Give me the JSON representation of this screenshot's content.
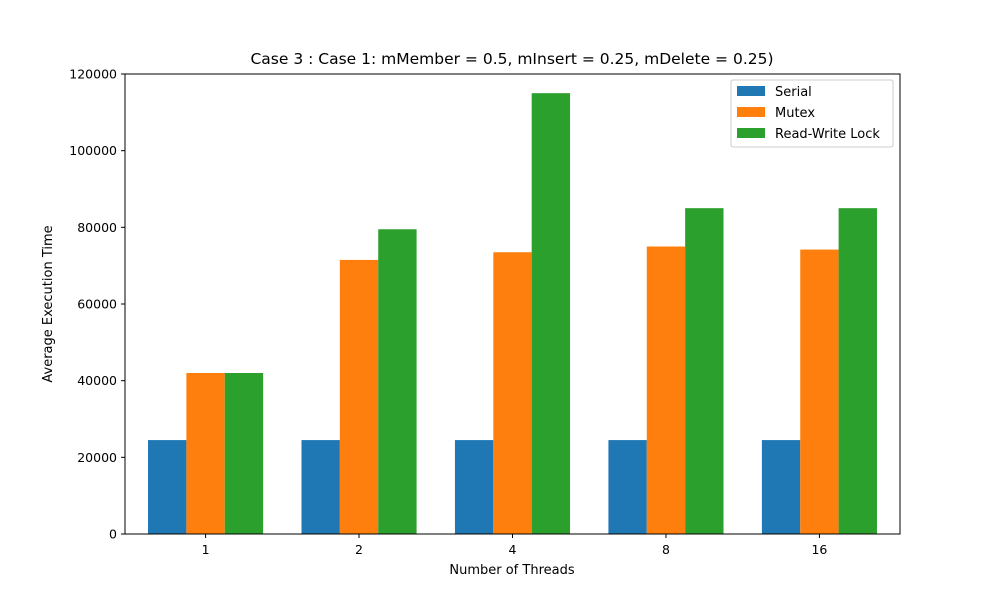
{
  "chart_data": {
    "type": "bar",
    "title": "Case 3 : Case 1: mMember = 0.5, mInsert = 0.25, mDelete = 0.25)",
    "xlabel": "Number of Threads",
    "ylabel": "Average Execution Time",
    "categories": [
      "1",
      "2",
      "4",
      "8",
      "16"
    ],
    "ylim": [
      0,
      120000
    ],
    "yticks": [
      0,
      20000,
      40000,
      60000,
      80000,
      100000,
      120000
    ],
    "ytick_labels": [
      "0",
      "20000",
      "40000",
      "60000",
      "80000",
      "100000",
      "120000"
    ],
    "grid": false,
    "legend_position": "top-right",
    "series": [
      {
        "name": "Serial",
        "color": "#1f77b4",
        "values": [
          24500,
          24500,
          24500,
          24500,
          24500
        ]
      },
      {
        "name": "Mutex",
        "color": "#ff7f0e",
        "values": [
          42000,
          71500,
          73500,
          75000,
          74200
        ]
      },
      {
        "name": "Read-Write Lock",
        "color": "#2ca02c",
        "values": [
          42000,
          79500,
          115000,
          85000,
          85000
        ]
      }
    ]
  }
}
